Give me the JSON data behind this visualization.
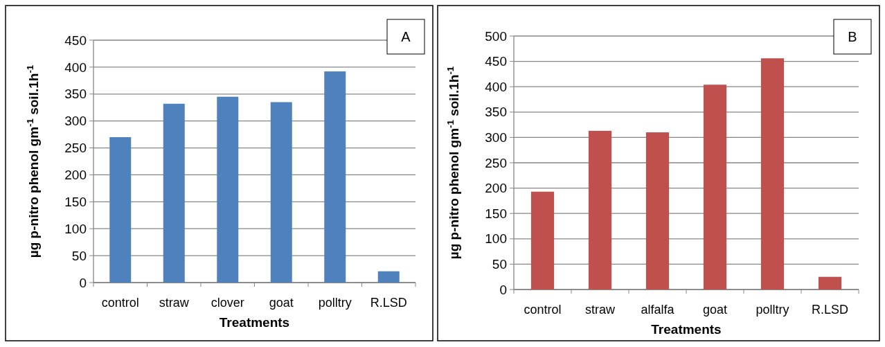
{
  "chart_data": [
    {
      "type": "bar",
      "categories": [
        "control",
        "straw",
        "clover",
        "goat",
        "polltry",
        "R.LSD"
      ],
      "values": [
        270,
        332,
        345,
        335,
        392,
        21
      ],
      "color": "#4f81bd",
      "xlabel": "Treatments",
      "ylabel": "µg p-nitro phenol gm$^{-1}$ soil.1h$^{-1}$",
      "ylim": [
        0,
        450
      ],
      "yticks": [
        0,
        50,
        100,
        150,
        200,
        250,
        300,
        350,
        400,
        450
      ],
      "grid": "y",
      "annotations": [
        "A"
      ]
    },
    {
      "type": "bar",
      "categories": [
        "control",
        "straw",
        "alfalfa",
        "goat",
        "polltry",
        "R.LSD"
      ],
      "values": [
        193,
        313,
        310,
        404,
        456,
        25
      ],
      "color": "#c0504d",
      "xlabel": "Treatments",
      "ylabel": "µg p-nitro phenol gm$^{-1}$ soil.1h$^{-1}$",
      "ylim": [
        0,
        500
      ],
      "yticks": [
        0,
        50,
        100,
        150,
        200,
        250,
        300,
        350,
        400,
        450,
        500
      ],
      "grid": "y",
      "annotations": [
        "B"
      ]
    }
  ]
}
